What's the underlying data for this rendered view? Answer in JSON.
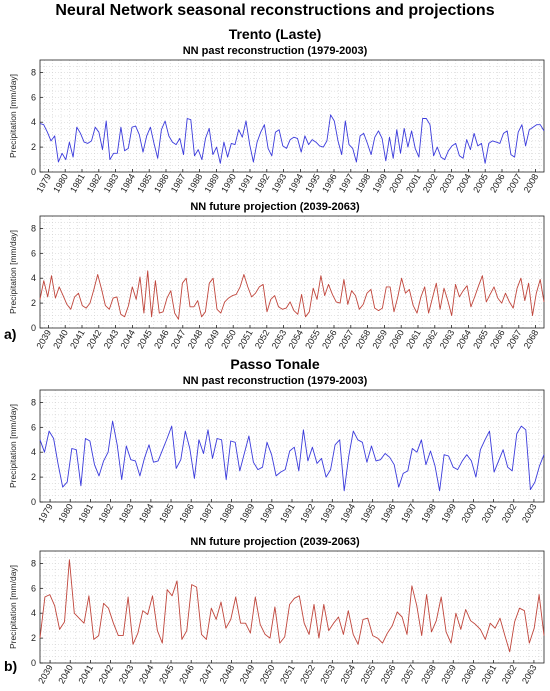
{
  "title": "Neural Network seasonal reconstructions and projections",
  "stations": [
    "Trento (Laste)",
    "Passo Tonale"
  ],
  "panel_labels": [
    "a)",
    "b)"
  ],
  "colors": {
    "past": "#3b3bdc",
    "future": "#c0463c",
    "grid": "#c8c8c8"
  },
  "chart_data": [
    {
      "type": "line",
      "title": "NN past reconstruction (1979-2003)",
      "ylabel": "Precipitation [mm/day]",
      "ylim": [
        0,
        9
      ],
      "yticks": [
        0,
        2,
        4,
        6,
        8
      ],
      "grid": true,
      "color": "#3b3bdc",
      "xticks": [
        "1979",
        "1980",
        "1981",
        "1982",
        "1983",
        "1984",
        "1985",
        "1986",
        "1987",
        "1988",
        "1989",
        "1990",
        "1991",
        "1992",
        "1993",
        "1994",
        "1995",
        "1996",
        "1997",
        "1998",
        "1999",
        "2000",
        "2001",
        "2002",
        "2003",
        "2004",
        "2005",
        "2006",
        "2007",
        "2008"
      ],
      "values": [
        3.9,
        3.8,
        3.2,
        2.5,
        2.9,
        0.8,
        1.5,
        1.0,
        2.4,
        1.2,
        3.6,
        3.1,
        2.4,
        2.3,
        2.5,
        3.6,
        3.2,
        1.8,
        4.1,
        1.0,
        1.5,
        1.5,
        3.6,
        1.7,
        1.9,
        3.6,
        3.7,
        3.0,
        1.6,
        2.9,
        3.6,
        2.3,
        1.1,
        3.4,
        4.1,
        2.9,
        2.4,
        2.2,
        2.7,
        1.4,
        4.3,
        4.2,
        1.3,
        1.8,
        1.0,
        2.7,
        3.5,
        1.4,
        2.0,
        0.7,
        2.4,
        1.2,
        2.3,
        2.2,
        3.4,
        2.8,
        4.1,
        2.2,
        0.8,
        2.4,
        3.2,
        3.8,
        1.9,
        1.3,
        3.2,
        3.4,
        2.1,
        1.9,
        2.6,
        2.8,
        2.7,
        1.6,
        2.9,
        2.2,
        2.6,
        2.4,
        2.1,
        2.0,
        2.5,
        4.6,
        4.1,
        2.5,
        1.4,
        4.1,
        2.2,
        1.9,
        0.8,
        2.9,
        3.1,
        2.3,
        1.4,
        2.8,
        3.3,
        2.7,
        0.9,
        2.8,
        1.1,
        3.4,
        1.5,
        3.5,
        2.0,
        3.3,
        1.9,
        1.2,
        4.3,
        4.3,
        3.8,
        1.3,
        2.0,
        1.2,
        1.0,
        1.7,
        2.1,
        2.3,
        1.3,
        1.1,
        2.6,
        1.8,
        3.1,
        2.1,
        2.3,
        0.7,
        2.3,
        2.5,
        2.4,
        2.3,
        3.1,
        3.3,
        1.4,
        1.2,
        3.2,
        3.8,
        2.1,
        3.4,
        3.6,
        3.8,
        3.8,
        3.3
      ]
    },
    {
      "type": "line",
      "title": "NN future projection (2039-2063)",
      "ylabel": "Precipitation [mm/day]",
      "ylim": [
        0,
        9
      ],
      "yticks": [
        0,
        2,
        4,
        6,
        8
      ],
      "grid": true,
      "color": "#c0463c",
      "xticks": [
        "2039",
        "2040",
        "2041",
        "2042",
        "2043",
        "2044",
        "2045",
        "2046",
        "2047",
        "2048",
        "2049",
        "2050",
        "2051",
        "2052",
        "2053",
        "2054",
        "2055",
        "2056",
        "2057",
        "2058",
        "2059",
        "2060",
        "2061",
        "2062",
        "2063",
        "2064",
        "2065",
        "2066",
        "2067",
        "2068"
      ],
      "values": [
        2.3,
        3.8,
        2.5,
        4.2,
        2.4,
        3.3,
        2.6,
        1.9,
        1.5,
        2.5,
        2.8,
        1.8,
        1.6,
        2.0,
        3.1,
        4.3,
        3.1,
        1.8,
        1.5,
        2.4,
        2.5,
        1.1,
        0.9,
        1.8,
        3.3,
        2.3,
        4.1,
        1.2,
        4.6,
        0.9,
        3.8,
        1.2,
        1.3,
        2.4,
        3.0,
        1.2,
        0.7,
        3.6,
        4.0,
        1.7,
        1.7,
        2.2,
        0.9,
        1.3,
        3.6,
        4.0,
        1.5,
        1.2,
        2.1,
        2.4,
        2.6,
        2.7,
        3.3,
        4.3,
        3.3,
        2.5,
        2.8,
        3.3,
        3.5,
        1.3,
        2.3,
        2.6,
        1.7,
        1.5,
        1.6,
        2.1,
        1.4,
        1.1,
        2.7,
        0.9,
        1.3,
        3.2,
        2.3,
        4.2,
        2.6,
        3.5,
        2.7,
        2.1,
        2.0,
        3.9,
        1.9,
        3.0,
        2.6,
        1.5,
        1.9,
        2.8,
        3.1,
        1.6,
        1.4,
        1.6,
        3.3,
        3.3,
        1.3,
        2.5,
        4.0,
        2.8,
        3.1,
        1.8,
        1.2,
        2.5,
        3.3,
        1.2,
        2.4,
        3.6,
        1.5,
        3.2,
        2.2,
        1.0,
        3.5,
        2.5,
        3.0,
        3.4,
        1.7,
        2.5,
        3.4,
        4.2,
        2.1,
        2.7,
        3.3,
        2.4,
        2.0,
        2.8,
        2.1,
        1.6,
        3.2,
        4.0,
        2.2,
        3.6,
        1.0,
        2.8,
        3.9,
        2.1
      ]
    },
    {
      "type": "line",
      "title": "NN past reconstruction (1979-2003)",
      "ylabel": "Precipitation [mm/day]",
      "ylim": [
        0,
        9
      ],
      "yticks": [
        0,
        2,
        4,
        6,
        8
      ],
      "grid": true,
      "color": "#3b3bdc",
      "xticks": [
        "1979",
        "1980",
        "1981",
        "1982",
        "1983",
        "1984",
        "1985",
        "1986",
        "1987",
        "1988",
        "1989",
        "1990",
        "1991",
        "1992",
        "1993",
        "1994",
        "1995",
        "1996",
        "1997",
        "1998",
        "1999",
        "2000",
        "2001",
        "2002",
        "2003"
      ],
      "values": [
        5.0,
        4.0,
        5.7,
        5.1,
        3.0,
        1.2,
        1.6,
        4.3,
        4.2,
        1.3,
        5.1,
        4.9,
        3.0,
        2.1,
        3.3,
        4.0,
        6.5,
        4.6,
        1.8,
        4.5,
        3.4,
        3.3,
        2.1,
        3.5,
        4.6,
        3.2,
        3.3,
        4.2,
        5.1,
        6.1,
        2.7,
        3.4,
        5.7,
        4.3,
        1.9,
        5.0,
        3.9,
        5.8,
        3.5,
        5.1,
        5.0,
        1.8,
        4.9,
        4.8,
        2.5,
        3.9,
        5.3,
        3.2,
        2.6,
        2.8,
        4.8,
        3.8,
        2.1,
        2.4,
        2.6,
        4.1,
        4.4,
        2.5,
        5.8,
        3.3,
        4.4,
        3.1,
        3.5,
        2.0,
        2.6,
        4.6,
        5.0,
        0.9,
        3.7,
        5.7,
        5.0,
        4.8,
        3.2,
        4.5,
        3.3,
        3.4,
        3.9,
        3.6,
        3.0,
        1.2,
        2.3,
        2.5,
        4.3,
        4.0,
        5.0,
        3.0,
        4.1,
        2.9,
        0.9,
        3.8,
        3.7,
        2.8,
        2.6,
        3.3,
        3.8,
        3.3,
        2.0,
        4.2,
        5.0,
        5.7,
        2.4,
        3.3,
        4.2,
        2.8,
        2.5,
        5.5,
        6.1,
        5.8,
        1.0,
        1.6,
        2.9,
        3.8
      ]
    },
    {
      "type": "line",
      "title": "NN future projection (2039-2063)",
      "ylabel": "Precipitation [mm/day]",
      "ylim": [
        0,
        9
      ],
      "yticks": [
        0,
        2,
        4,
        6,
        8
      ],
      "grid": true,
      "color": "#c0463c",
      "xticks": [
        "2039",
        "2040",
        "2041",
        "2042",
        "2043",
        "2044",
        "2045",
        "2046",
        "2047",
        "2048",
        "2049",
        "2050",
        "2051",
        "2052",
        "2053",
        "2054",
        "2055",
        "2056",
        "2057",
        "2058",
        "2059",
        "2060",
        "2061",
        "2062",
        "2063"
      ],
      "values": [
        2.0,
        5.3,
        5.5,
        4.6,
        2.7,
        3.3,
        8.3,
        4.0,
        3.6,
        3.2,
        5.4,
        1.9,
        2.2,
        4.8,
        4.4,
        3.2,
        2.2,
        2.2,
        5.3,
        1.5,
        2.4,
        4.2,
        3.9,
        5.4,
        2.6,
        1.6,
        5.9,
        5.4,
        6.6,
        1.9,
        2.6,
        6.3,
        6.1,
        2.3,
        1.9,
        4.4,
        3.5,
        4.9,
        2.8,
        3.5,
        5.3,
        3.2,
        3.2,
        2.4,
        5.3,
        3.1,
        2.3,
        2.0,
        4.5,
        1.6,
        2.1,
        4.7,
        5.2,
        5.4,
        3.2,
        2.3,
        4.7,
        2.0,
        4.7,
        2.6,
        3.2,
        3.7,
        2.3,
        4.2,
        2.3,
        1.5,
        3.5,
        3.6,
        2.2,
        2.0,
        1.6,
        2.4,
        3.0,
        4.1,
        3.7,
        2.3,
        6.2,
        4.6,
        2.2,
        5.5,
        2.5,
        3.4,
        5.3,
        2.5,
        1.6,
        4.0,
        2.7,
        4.3,
        3.4,
        3.1,
        2.7,
        1.9,
        3.2,
        2.8,
        3.6,
        2.2,
        0.9,
        3.3,
        4.4,
        4.2,
        1.6,
        2.8,
        5.5,
        2.2
      ]
    }
  ]
}
